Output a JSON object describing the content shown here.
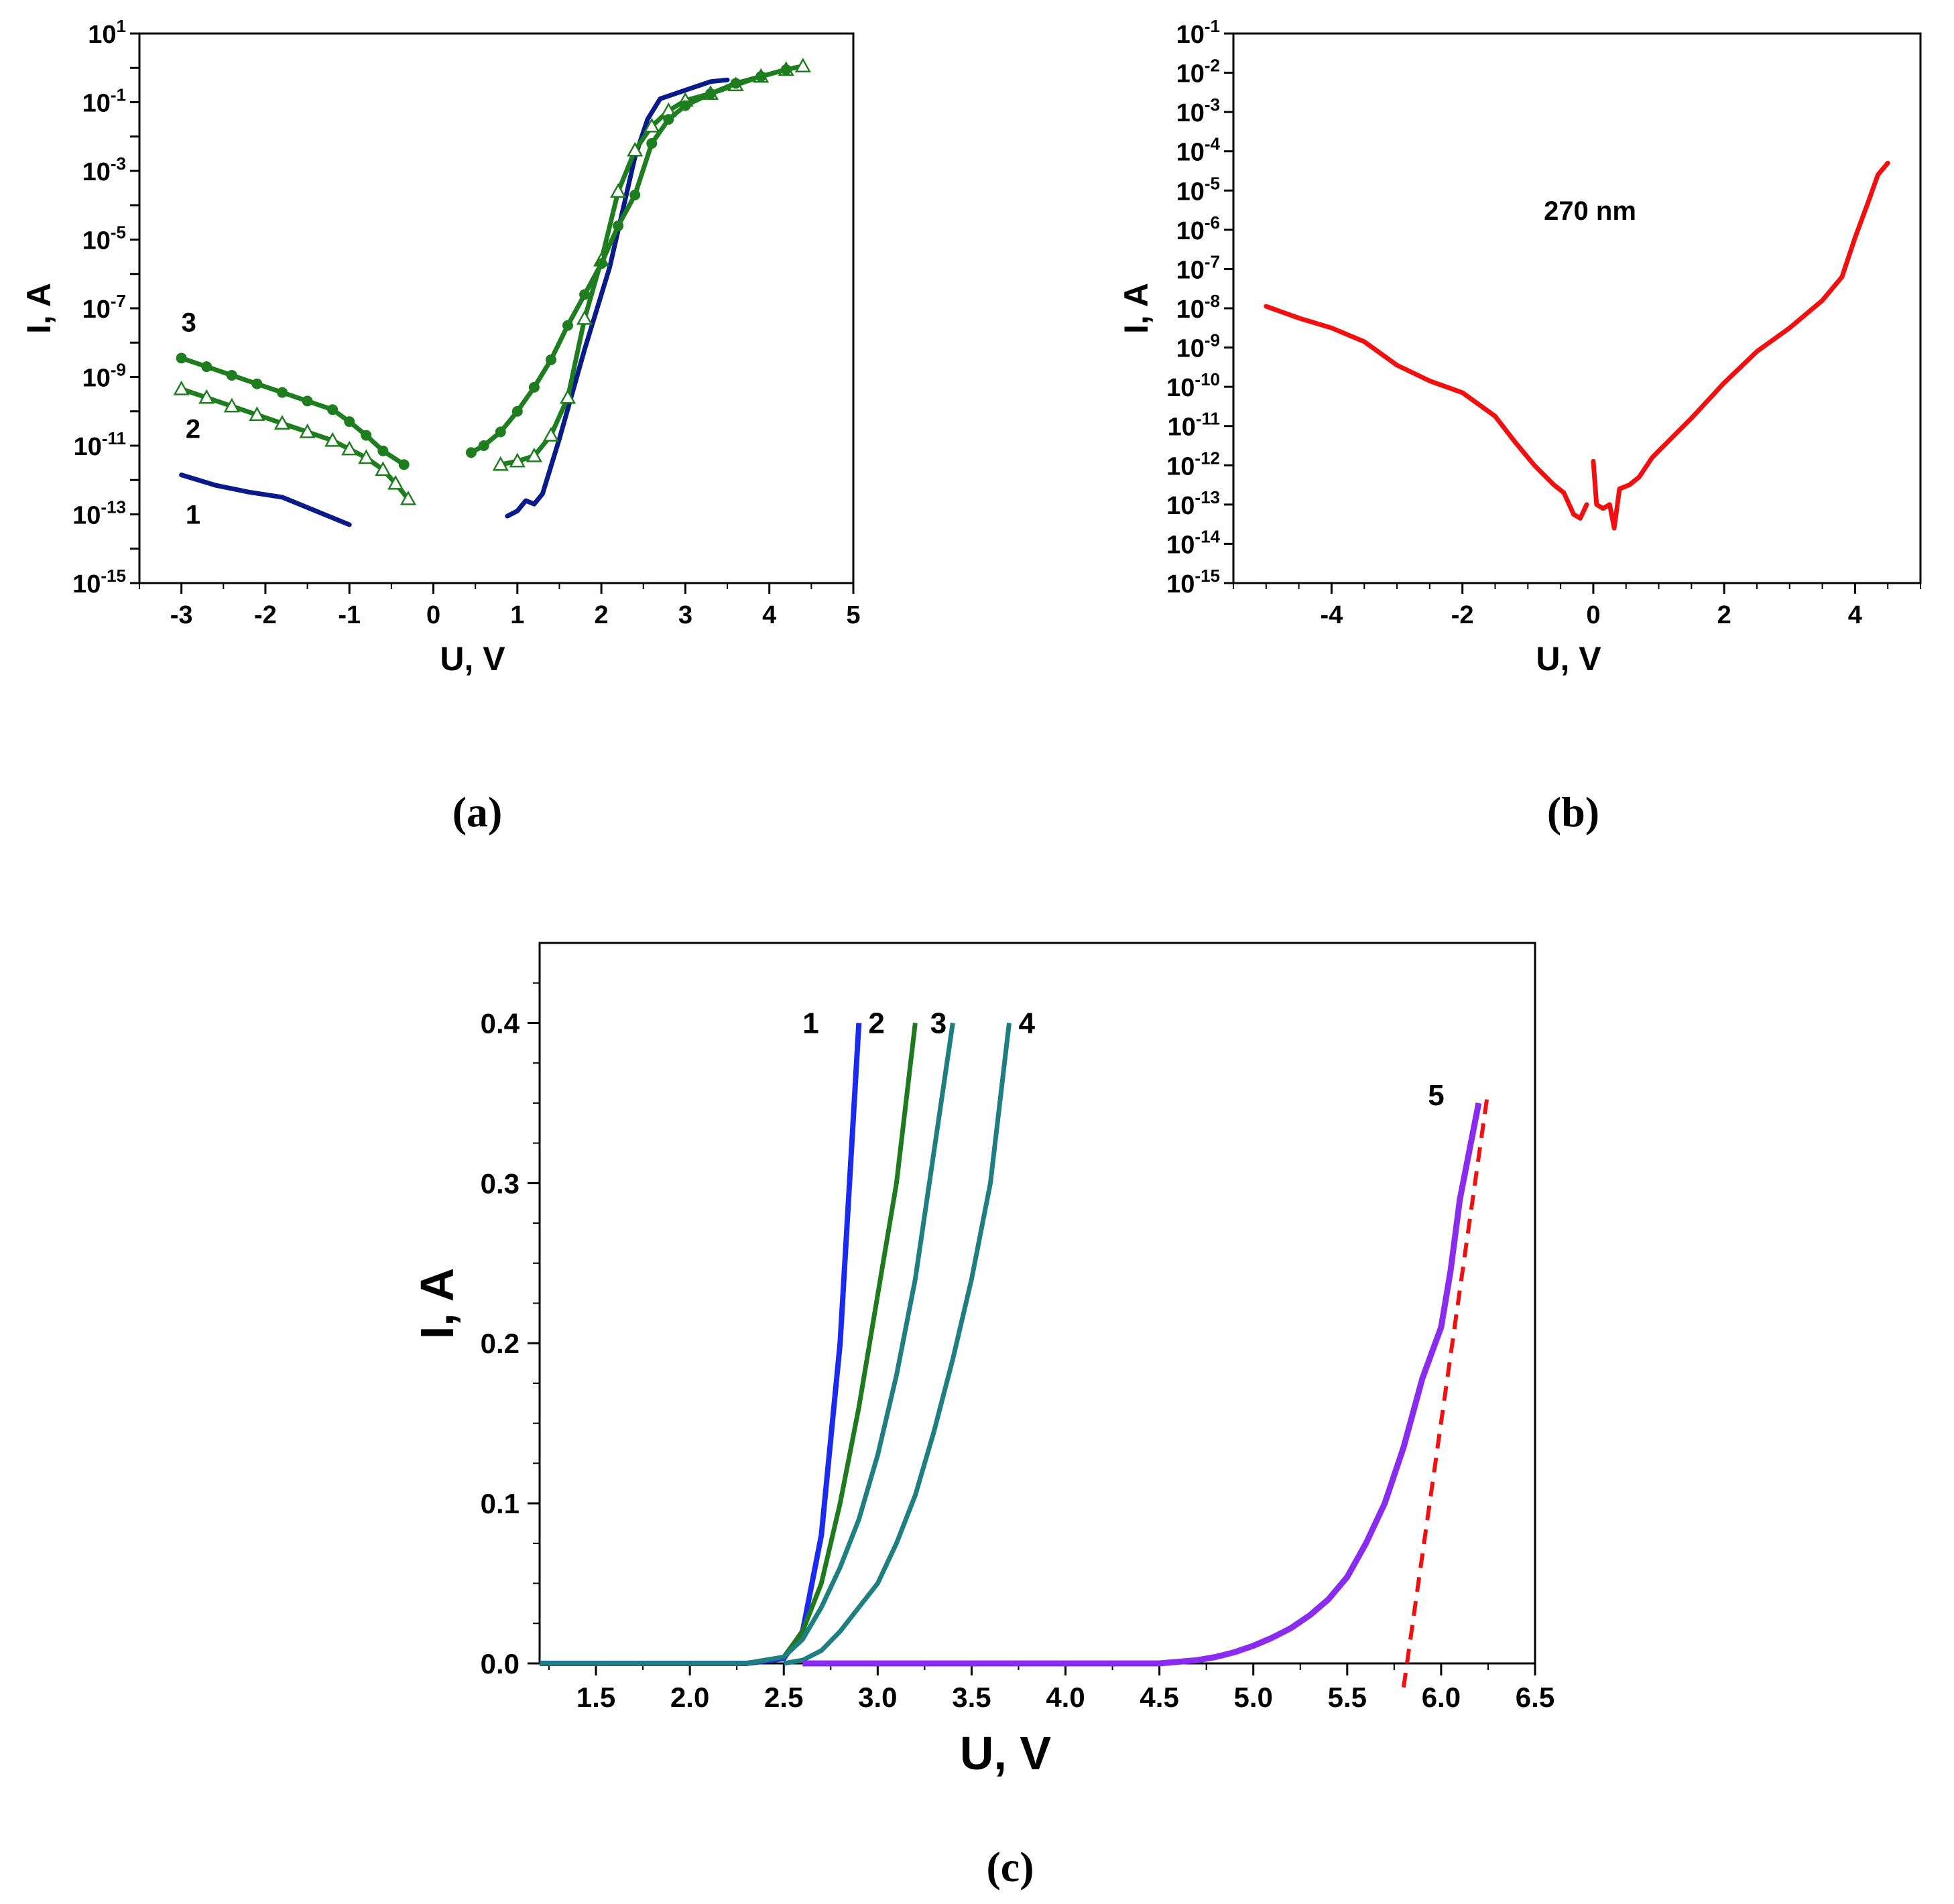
{
  "chart_data": [
    {
      "panel": "a",
      "caption": "(a)",
      "type": "line",
      "yscale": "log",
      "xlabel": "U, V",
      "ylabel": "I, A",
      "xlim": [
        -3.5,
        5
      ],
      "ylim_exp": [
        -15,
        1
      ],
      "x_ticks": [
        "-3",
        "-2",
        "-1",
        "0",
        "1",
        "2",
        "3",
        "4",
        "5"
      ],
      "x_tick_values": [
        -3,
        -2,
        -1,
        0,
        1,
        2,
        3,
        4,
        5
      ],
      "y_ticks": [
        {
          "exp": 1,
          "base": "10",
          "sup": "1"
        },
        {
          "exp": -1,
          "base": "10",
          "sup": "-1"
        },
        {
          "exp": -3,
          "base": "10",
          "sup": "-3"
        },
        {
          "exp": -5,
          "base": "10",
          "sup": "-5"
        },
        {
          "exp": -7,
          "base": "10",
          "sup": "-7"
        },
        {
          "exp": -9,
          "base": "10",
          "sup": "-9"
        },
        {
          "exp": -11,
          "base": "10",
          "sup": "-11"
        },
        {
          "exp": -13,
          "base": "10",
          "sup": "-13"
        },
        {
          "exp": -15,
          "base": "10",
          "sup": "-15"
        }
      ],
      "series": [
        {
          "name": "1",
          "color": "#0a1a8a",
          "marker": "none",
          "label_at": [
            -2.95,
            -13.0
          ],
          "segments": [
            [
              [
                -3.0,
                -11.85
              ],
              [
                -2.6,
                -12.15
              ],
              [
                -2.2,
                -12.35
              ],
              [
                -1.8,
                -12.5
              ],
              [
                -1.4,
                -12.9
              ],
              [
                -1.0,
                -13.3
              ]
            ],
            [
              [
                0.88,
                -13.05
              ],
              [
                1.0,
                -12.9
              ],
              [
                1.1,
                -12.6
              ],
              [
                1.2,
                -12.7
              ],
              [
                1.3,
                -12.4
              ],
              [
                1.5,
                -10.8
              ],
              [
                1.8,
                -8.2
              ],
              [
                2.1,
                -5.8
              ],
              [
                2.4,
                -2.6
              ],
              [
                2.55,
                -1.5
              ],
              [
                2.7,
                -0.9
              ],
              [
                3.0,
                -0.65
              ],
              [
                3.3,
                -0.4
              ],
              [
                3.5,
                -0.35
              ]
            ]
          ]
        },
        {
          "name": "2",
          "color": "#1e7d1e",
          "marker": "triangle-open",
          "label_at": [
            -2.95,
            -10.5
          ],
          "segments": [
            [
              [
                -3.0,
                -9.35
              ],
              [
                -2.7,
                -9.6
              ],
              [
                -2.4,
                -9.85
              ],
              [
                -2.1,
                -10.1
              ],
              [
                -1.8,
                -10.35
              ],
              [
                -1.5,
                -10.6
              ],
              [
                -1.2,
                -10.85
              ],
              [
                -1.0,
                -11.1
              ],
              [
                -0.8,
                -11.35
              ],
              [
                -0.6,
                -11.7
              ],
              [
                -0.45,
                -12.1
              ],
              [
                -0.3,
                -12.55
              ]
            ],
            [
              [
                0.8,
                -11.55
              ],
              [
                1.0,
                -11.45
              ],
              [
                1.2,
                -11.3
              ],
              [
                1.4,
                -10.7
              ],
              [
                1.6,
                -9.6
              ],
              [
                1.8,
                -7.3
              ],
              [
                2.0,
                -5.6
              ],
              [
                2.2,
                -3.6
              ],
              [
                2.4,
                -2.4
              ],
              [
                2.6,
                -1.7
              ],
              [
                2.8,
                -1.25
              ],
              [
                3.0,
                -0.95
              ],
              [
                3.3,
                -0.75
              ],
              [
                3.6,
                -0.5
              ],
              [
                3.9,
                -0.25
              ],
              [
                4.2,
                -0.05
              ],
              [
                4.4,
                0.05
              ]
            ]
          ]
        },
        {
          "name": "3",
          "color": "#1e7d1e",
          "marker": "circle-filled",
          "label_at": [
            -3.0,
            -7.4
          ],
          "segments": [
            [
              [
                -3.0,
                -8.45
              ],
              [
                -2.7,
                -8.7
              ],
              [
                -2.4,
                -8.95
              ],
              [
                -2.1,
                -9.2
              ],
              [
                -1.8,
                -9.45
              ],
              [
                -1.5,
                -9.7
              ],
              [
                -1.2,
                -9.95
              ],
              [
                -1.0,
                -10.3
              ],
              [
                -0.8,
                -10.7
              ],
              [
                -0.6,
                -11.15
              ],
              [
                -0.35,
                -11.55
              ]
            ],
            [
              [
                0.45,
                -11.2
              ],
              [
                0.6,
                -11.0
              ],
              [
                0.8,
                -10.6
              ],
              [
                1.0,
                -10.0
              ],
              [
                1.2,
                -9.3
              ],
              [
                1.4,
                -8.5
              ],
              [
                1.6,
                -7.5
              ],
              [
                1.8,
                -6.6
              ],
              [
                2.0,
                -5.7
              ],
              [
                2.2,
                -4.6
              ],
              [
                2.4,
                -3.7
              ],
              [
                2.6,
                -2.2
              ],
              [
                2.8,
                -1.5
              ],
              [
                3.0,
                -1.1
              ],
              [
                3.3,
                -0.75
              ],
              [
                3.6,
                -0.45
              ],
              [
                3.9,
                -0.25
              ],
              [
                4.2,
                -0.05
              ]
            ]
          ]
        }
      ]
    },
    {
      "panel": "b",
      "caption": "(b)",
      "type": "line",
      "yscale": "log",
      "xlabel": "U, V",
      "ylabel": "I, A",
      "annotation": "270 nm",
      "xlim": [
        -5.5,
        5
      ],
      "ylim_exp": [
        -15,
        -1
      ],
      "x_ticks": [
        "-4",
        "-2",
        "0",
        "2",
        "4"
      ],
      "x_tick_values": [
        -4,
        -2,
        0,
        2,
        4
      ],
      "y_ticks": [
        {
          "exp": -1,
          "base": "10",
          "sup": "-1"
        },
        {
          "exp": -2,
          "base": "10",
          "sup": "-2"
        },
        {
          "exp": -3,
          "base": "10",
          "sup": "-3"
        },
        {
          "exp": -4,
          "base": "10",
          "sup": "-4"
        },
        {
          "exp": -5,
          "base": "10",
          "sup": "-5"
        },
        {
          "exp": -6,
          "base": "10",
          "sup": "-6"
        },
        {
          "exp": -7,
          "base": "10",
          "sup": "-7"
        },
        {
          "exp": -8,
          "base": "10",
          "sup": "-8"
        },
        {
          "exp": -9,
          "base": "10",
          "sup": "-9"
        },
        {
          "exp": -10,
          "base": "10",
          "sup": "-10"
        },
        {
          "exp": -11,
          "base": "10",
          "sup": "-11"
        },
        {
          "exp": -12,
          "base": "10",
          "sup": "-12"
        },
        {
          "exp": -13,
          "base": "10",
          "sup": "-13"
        },
        {
          "exp": -14,
          "base": "10",
          "sup": "-14"
        },
        {
          "exp": -15,
          "base": "10",
          "sup": "-15"
        }
      ],
      "series": [
        {
          "name": "270 nm",
          "color": "#f01010",
          "segments": [
            [
              [
                -5.0,
                -7.95
              ],
              [
                -4.5,
                -8.25
              ],
              [
                -4.0,
                -8.5
              ],
              [
                -3.5,
                -8.85
              ],
              [
                -3.0,
                -9.45
              ],
              [
                -2.5,
                -9.85
              ],
              [
                -2.0,
                -10.15
              ],
              [
                -1.5,
                -10.75
              ],
              [
                -1.2,
                -11.4
              ],
              [
                -0.9,
                -12.0
              ],
              [
                -0.6,
                -12.5
              ],
              [
                -0.45,
                -12.7
              ],
              [
                -0.3,
                -13.25
              ],
              [
                -0.2,
                -13.35
              ],
              [
                -0.1,
                -13.0
              ]
            ],
            [
              [
                0.0,
                -11.9
              ],
              [
                0.05,
                -13.0
              ],
              [
                0.15,
                -13.1
              ],
              [
                0.25,
                -13.0
              ],
              [
                0.32,
                -13.6
              ],
              [
                0.4,
                -12.6
              ],
              [
                0.55,
                -12.5
              ],
              [
                0.7,
                -12.3
              ],
              [
                0.9,
                -11.8
              ],
              [
                1.2,
                -11.3
              ],
              [
                1.5,
                -10.8
              ],
              [
                2.0,
                -9.9
              ],
              [
                2.5,
                -9.1
              ],
              [
                3.0,
                -8.5
              ],
              [
                3.5,
                -7.8
              ],
              [
                3.8,
                -7.2
              ],
              [
                4.0,
                -6.2
              ],
              [
                4.2,
                -5.3
              ],
              [
                4.35,
                -4.6
              ],
              [
                4.5,
                -4.3
              ]
            ]
          ]
        }
      ]
    },
    {
      "panel": "c",
      "caption": "(c)",
      "type": "line",
      "yscale": "linear",
      "xlabel": "U, V",
      "ylabel": "I, A",
      "xlim": [
        1.2,
        6.5
      ],
      "ylim": [
        0,
        0.45
      ],
      "x_ticks": [
        "1.5",
        "2.0",
        "2.5",
        "3.0",
        "3.5",
        "4.0",
        "4.5",
        "5.0",
        "5.5",
        "6.0",
        "6.5"
      ],
      "x_tick_values": [
        1.5,
        2.0,
        2.5,
        3.0,
        3.5,
        4.0,
        4.5,
        5.0,
        5.5,
        6.0,
        6.5
      ],
      "y_ticks": [
        "0.0",
        "0.1",
        "0.2",
        "0.3",
        "0.4"
      ],
      "y_tick_values": [
        0.0,
        0.1,
        0.2,
        0.3,
        0.4
      ],
      "series": [
        {
          "name": "1",
          "color": "#1a2af0",
          "width": 8,
          "label_at": [
            2.6,
            0.4
          ],
          "points": [
            [
              1.2,
              0.0
            ],
            [
              2.3,
              0.0
            ],
            [
              2.5,
              0.003
            ],
            [
              2.6,
              0.02
            ],
            [
              2.7,
              0.08
            ],
            [
              2.8,
              0.2
            ],
            [
              2.85,
              0.3
            ],
            [
              2.9,
              0.4
            ]
          ]
        },
        {
          "name": "2",
          "color": "#1f7a1f",
          "width": 7,
          "label_at": [
            2.95,
            0.4
          ],
          "points": [
            [
              1.2,
              0.0
            ],
            [
              2.3,
              0.0
            ],
            [
              2.5,
              0.004
            ],
            [
              2.6,
              0.02
            ],
            [
              2.7,
              0.05
            ],
            [
              2.8,
              0.1
            ],
            [
              2.9,
              0.16
            ],
            [
              3.0,
              0.23
            ],
            [
              3.1,
              0.3
            ],
            [
              3.2,
              0.4
            ]
          ]
        },
        {
          "name": "3",
          "color": "#1f7f80",
          "width": 7,
          "label_at": [
            3.28,
            0.4
          ],
          "points": [
            [
              1.2,
              0.0
            ],
            [
              2.3,
              0.0
            ],
            [
              2.5,
              0.004
            ],
            [
              2.6,
              0.015
            ],
            [
              2.7,
              0.035
            ],
            [
              2.8,
              0.06
            ],
            [
              2.9,
              0.09
            ],
            [
              3.0,
              0.13
            ],
            [
              3.1,
              0.18
            ],
            [
              3.2,
              0.24
            ],
            [
              3.3,
              0.32
            ],
            [
              3.4,
              0.4
            ]
          ]
        },
        {
          "name": "4",
          "color": "#1f7f80",
          "width": 7,
          "label_at": [
            3.75,
            0.4
          ],
          "points": [
            [
              2.5,
              0.0
            ],
            [
              2.6,
              0.002
            ],
            [
              2.7,
              0.008
            ],
            [
              2.8,
              0.02
            ],
            [
              2.9,
              0.035
            ],
            [
              3.0,
              0.05
            ],
            [
              3.1,
              0.075
            ],
            [
              3.2,
              0.105
            ],
            [
              3.3,
              0.145
            ],
            [
              3.4,
              0.19
            ],
            [
              3.5,
              0.24
            ],
            [
              3.6,
              0.3
            ],
            [
              3.7,
              0.4
            ]
          ]
        },
        {
          "name": "5",
          "color": "#8a2cf0",
          "width": 9,
          "label_at": [
            5.93,
            0.355
          ],
          "points": [
            [
              2.6,
              0.0
            ],
            [
              4.5,
              0.0
            ],
            [
              4.6,
              0.001
            ],
            [
              4.7,
              0.002
            ],
            [
              4.8,
              0.004
            ],
            [
              4.9,
              0.007
            ],
            [
              5.0,
              0.011
            ],
            [
              5.1,
              0.016
            ],
            [
              5.2,
              0.022
            ],
            [
              5.3,
              0.03
            ],
            [
              5.4,
              0.04
            ],
            [
              5.5,
              0.054
            ],
            [
              5.6,
              0.075
            ],
            [
              5.7,
              0.1
            ],
            [
              5.8,
              0.135
            ],
            [
              5.9,
              0.178
            ],
            [
              6.0,
              0.21
            ],
            [
              6.05,
              0.245
            ],
            [
              6.1,
              0.29
            ],
            [
              6.15,
              0.32
            ],
            [
              6.2,
              0.35
            ]
          ]
        },
        {
          "name": "5 linear fit",
          "color": "#f01010",
          "width": 6,
          "dashed": true,
          "points": [
            [
              5.8,
              -0.015
            ],
            [
              6.25,
              0.358
            ]
          ]
        }
      ]
    }
  ]
}
